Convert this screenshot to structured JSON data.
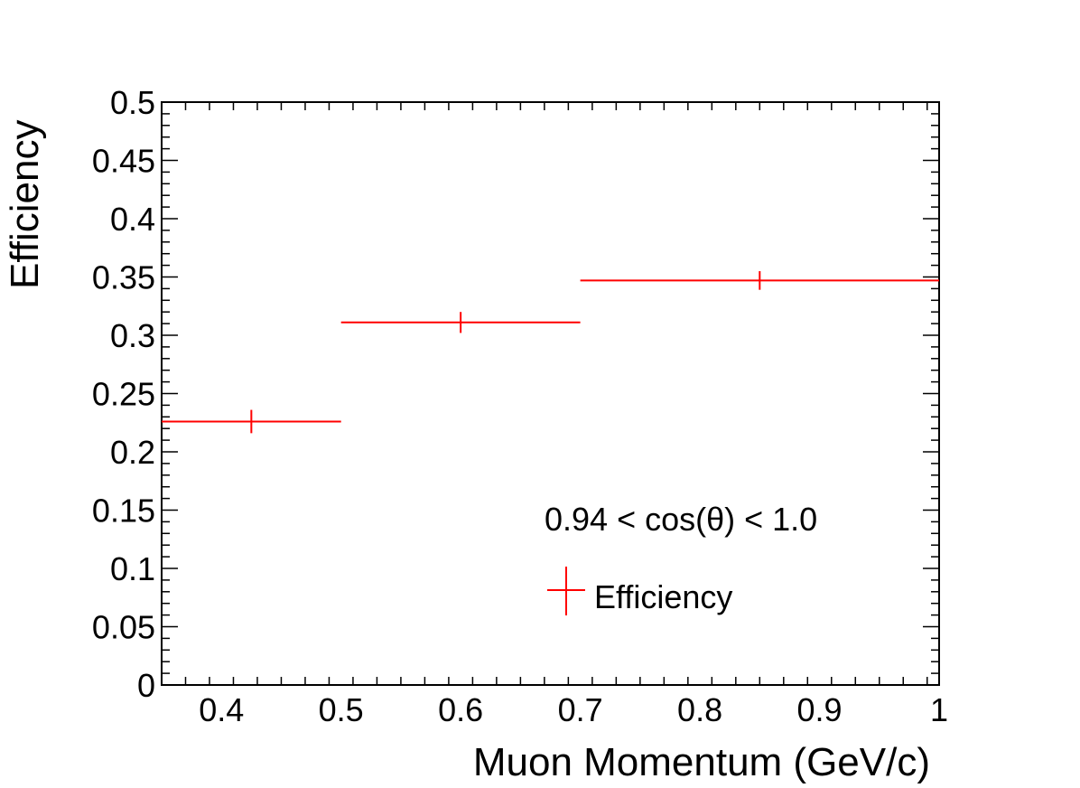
{
  "chart_data": {
    "type": "scatter",
    "title": "",
    "xlabel": "Muon Momentum (GeV/c)",
    "ylabel": "Efficiency",
    "xlim": [
      0.35,
      1.0
    ],
    "ylim": [
      0,
      0.5
    ],
    "grid": false,
    "x_ticks": [
      "0.4",
      "0.5",
      "0.6",
      "0.7",
      "0.8",
      "0.9",
      "1"
    ],
    "y_ticks": [
      "0",
      "0.05",
      "0.1",
      "0.15",
      "0.2",
      "0.25",
      "0.3",
      "0.35",
      "0.4",
      "0.45",
      "0.5"
    ],
    "series": [
      {
        "name": "Efficiency",
        "color": "#ff0000",
        "points": [
          {
            "x": 0.425,
            "x_low": 0.35,
            "x_high": 0.5,
            "y": 0.226,
            "y_err": 0.01
          },
          {
            "x": 0.6,
            "x_low": 0.5,
            "x_high": 0.7,
            "y": 0.311,
            "y_err": 0.009
          },
          {
            "x": 0.85,
            "x_low": 0.7,
            "x_high": 1.0,
            "y": 0.347,
            "y_err": 0.008
          }
        ]
      }
    ],
    "annotation": "0.94 < cos(θ) < 1.0",
    "legend": {
      "placement": "bottom-right",
      "entries": [
        "Efficiency"
      ]
    }
  }
}
